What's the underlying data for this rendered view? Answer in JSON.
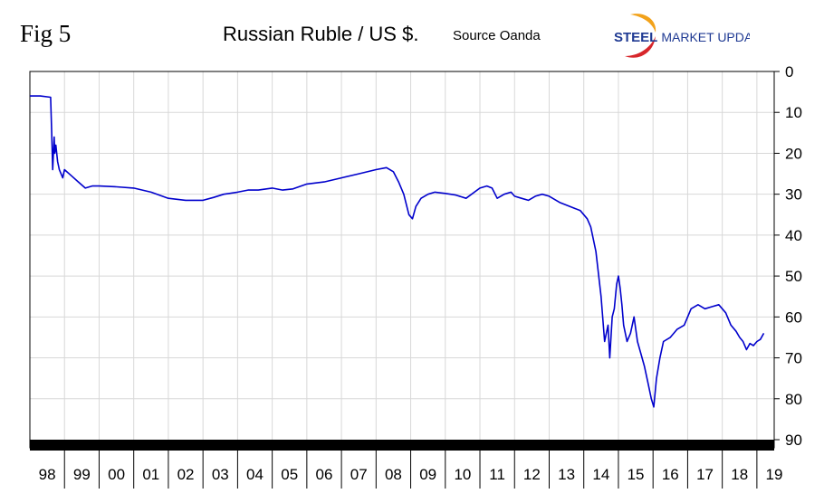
{
  "figure_label": "Fig 5",
  "source_label": "Source Oanda",
  "logo": {
    "text_bold": "STEEL",
    "text_regular": "MARKET UPDATE",
    "colors": {
      "text": "#1f3a93",
      "swoosh_orange": "#f2a21b",
      "swoosh_red": "#d7262b"
    }
  },
  "colors": {
    "line": "#0000cc",
    "grid": "#d8d8d8",
    "band": "#000000",
    "axis": "#000000"
  },
  "chart_data": {
    "type": "line",
    "title": "Russian Ruble / US $.",
    "xlabel": "",
    "ylabel": "",
    "y_inverted": true,
    "ylim": [
      0,
      90
    ],
    "yticks": [
      0,
      10,
      20,
      30,
      40,
      50,
      60,
      70,
      80,
      90
    ],
    "xlim": [
      1998.0,
      2019.5
    ],
    "x_tick_labels": [
      "98",
      "99",
      "00",
      "01",
      "02",
      "03",
      "04",
      "05",
      "06",
      "07",
      "08",
      "09",
      "10",
      "11",
      "12",
      "13",
      "14",
      "15",
      "16",
      "17",
      "18",
      "19"
    ],
    "grid": true,
    "series": [
      {
        "x": [
          1998.0,
          1998.3,
          1998.6,
          1998.63,
          1998.66,
          1998.7,
          1998.72,
          1998.75,
          1998.8,
          1998.85,
          1998.9,
          1998.95,
          1999.0,
          1999.2,
          1999.4,
          1999.6,
          1999.8,
          2000.0,
          2000.5,
          2001.0,
          2001.5,
          2002.0,
          2002.5,
          2003.0,
          2003.3,
          2003.6,
          2004.0,
          2004.3,
          2004.6,
          2005.0,
          2005.3,
          2005.6,
          2006.0,
          2006.5,
          2007.0,
          2007.5,
          2008.0,
          2008.3,
          2008.5,
          2008.65,
          2008.8,
          2008.95,
          2009.05,
          2009.15,
          2009.3,
          2009.5,
          2009.7,
          2010.0,
          2010.3,
          2010.6,
          2011.0,
          2011.2,
          2011.35,
          2011.5,
          2011.7,
          2011.9,
          2012.0,
          2012.2,
          2012.4,
          2012.6,
          2012.8,
          2013.0,
          2013.3,
          2013.6,
          2013.9,
          2014.1,
          2014.2,
          2014.35,
          2014.5,
          2014.6,
          2014.7,
          2014.75,
          2014.82,
          2014.88,
          2014.95,
          2015.0,
          2015.05,
          2015.1,
          2015.15,
          2015.25,
          2015.35,
          2015.45,
          2015.55,
          2015.65,
          2015.75,
          2015.85,
          2015.95,
          2016.02,
          2016.1,
          2016.2,
          2016.3,
          2016.5,
          2016.7,
          2016.9,
          2017.1,
          2017.3,
          2017.5,
          2017.7,
          2017.9,
          2018.1,
          2018.25,
          2018.4,
          2018.5,
          2018.6,
          2018.7,
          2018.8,
          2018.9,
          2019.0,
          2019.1,
          2019.2
        ],
        "y": [
          6.0,
          6.0,
          6.3,
          15.0,
          24.0,
          16.0,
          20.0,
          18.0,
          22.0,
          24.0,
          25.0,
          26.0,
          24.0,
          25.5,
          27.0,
          28.5,
          28.0,
          28.0,
          28.2,
          28.5,
          29.5,
          31.0,
          31.5,
          31.5,
          30.8,
          30.0,
          29.5,
          29.0,
          29.0,
          28.5,
          29.0,
          28.7,
          27.5,
          27.0,
          26.0,
          25.0,
          24.0,
          23.5,
          24.5,
          27.0,
          30.0,
          35.0,
          36.0,
          33.0,
          31.0,
          30.0,
          29.5,
          29.8,
          30.2,
          31.0,
          28.5,
          28.0,
          28.5,
          31.0,
          30.0,
          29.5,
          30.5,
          31.0,
          31.5,
          30.5,
          30.0,
          30.5,
          32.0,
          33.0,
          34.0,
          36.0,
          38.0,
          44.0,
          55.0,
          66.0,
          62.0,
          70.0,
          60.0,
          58.0,
          52.0,
          50.0,
          53.0,
          57.0,
          62.0,
          66.0,
          64.0,
          60.0,
          66.0,
          69.0,
          72.0,
          76.0,
          80.0,
          82.0,
          75.0,
          70.0,
          66.0,
          65.0,
          63.0,
          62.0,
          58.0,
          57.0,
          58.0,
          57.5,
          57.0,
          59.0,
          62.0,
          63.5,
          65.0,
          66.0,
          68.0,
          66.5,
          67.0,
          66.0,
          65.5,
          64.0
        ]
      }
    ]
  }
}
